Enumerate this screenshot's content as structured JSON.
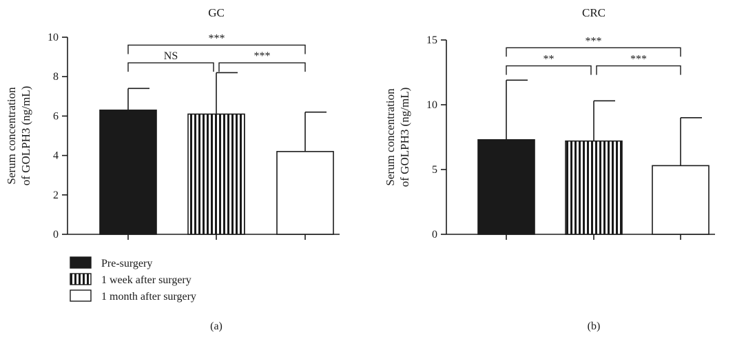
{
  "legend": [
    {
      "label": "Pre-surgery",
      "fill": "solid"
    },
    {
      "label": "1 week after surgery",
      "fill": "vertical-stripes"
    },
    {
      "label": "1 month after surgery",
      "fill": "white"
    }
  ],
  "colors": {
    "ink": "#1a1a1a",
    "background": "#ffffff"
  },
  "chart_data": [
    {
      "type": "bar",
      "panel_letter": "(a)",
      "title": "GC",
      "ylabel": "Serum concentration\nof GOLPH3 (ng/mL)",
      "xlabel": "",
      "categories": [
        "Pre-surgery",
        "1 week after surgery",
        "1 month after surgery"
      ],
      "series": [
        {
          "values": [
            6.3,
            6.1,
            4.2
          ],
          "error_upper": [
            1.1,
            2.1,
            2.0
          ]
        }
      ],
      "ylim": [
        0,
        10
      ],
      "yticks": [
        0,
        2,
        4,
        6,
        8,
        10
      ],
      "grid": false,
      "legend_placement": "bottom-left",
      "significance": [
        {
          "from": 0,
          "to": 1,
          "label": "NS",
          "y": 8.7
        },
        {
          "from": 1,
          "to": 2,
          "label": "***",
          "y": 8.7
        },
        {
          "from": 0,
          "to": 2,
          "label": "***",
          "y": 9.6
        }
      ]
    },
    {
      "type": "bar",
      "panel_letter": "(b)",
      "title": "CRC",
      "ylabel": "Serum concentration\nof GOLPH3 (ng/mL)",
      "xlabel": "",
      "categories": [
        "Pre-surgery",
        "1 week after surgery",
        "1 month after surgery"
      ],
      "series": [
        {
          "values": [
            7.3,
            7.2,
            5.3
          ],
          "error_upper": [
            4.6,
            3.1,
            3.7
          ]
        }
      ],
      "ylim": [
        0,
        15
      ],
      "yticks": [
        0,
        5,
        10,
        15
      ],
      "grid": false,
      "significance": [
        {
          "from": 0,
          "to": 1,
          "label": "**",
          "y": 13.0
        },
        {
          "from": 1,
          "to": 2,
          "label": "***",
          "y": 13.0
        },
        {
          "from": 0,
          "to": 2,
          "label": "***",
          "y": 14.4
        }
      ]
    }
  ]
}
